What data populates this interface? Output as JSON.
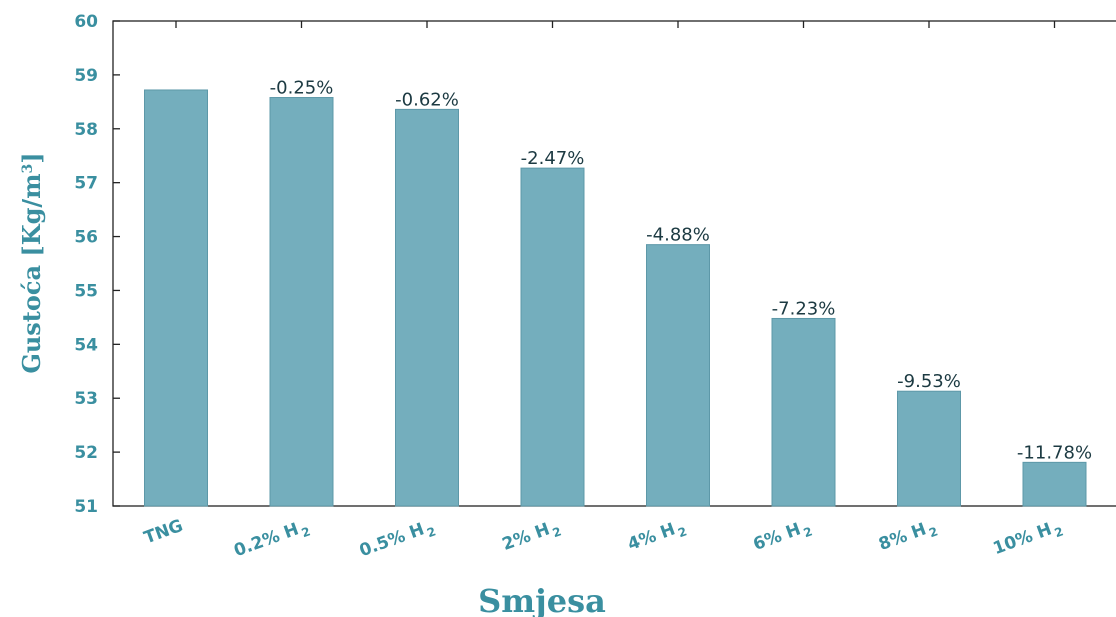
{
  "chart_data": {
    "type": "bar",
    "xlabel": "Smjesa",
    "ylabel": "Gustoća  [Kg/m",
    "ylabel_sup": "3",
    "ylabel_close": "]",
    "ylim": [
      51,
      60
    ],
    "yticks": [
      51,
      52,
      53,
      54,
      55,
      56,
      57,
      58,
      59,
      60
    ],
    "grid": false,
    "categories": [
      {
        "main": "TNG",
        "sub": ""
      },
      {
        "main": "0.2% H",
        "sub": "2"
      },
      {
        "main": "0.5% H",
        "sub": "2"
      },
      {
        "main": "2% H",
        "sub": "2"
      },
      {
        "main": "4% H",
        "sub": "2"
      },
      {
        "main": "6% H",
        "sub": "2"
      },
      {
        "main": "8% H",
        "sub": "2"
      },
      {
        "main": "10% H",
        "sub": "2"
      }
    ],
    "values": [
      58.72,
      58.58,
      58.36,
      57.27,
      55.85,
      54.48,
      53.13,
      51.81
    ],
    "data_labels": [
      "",
      "-0.25%",
      "-0.62%",
      "-2.47%",
      "-4.88%",
      "-7.23%",
      "-9.53%",
      "-11.78%"
    ],
    "colors": {
      "bar": "#74aebd",
      "bar_edge": "#5d98a8",
      "text": "#3a8fa0",
      "label": "#1c3a42",
      "axis": "#222222"
    }
  }
}
